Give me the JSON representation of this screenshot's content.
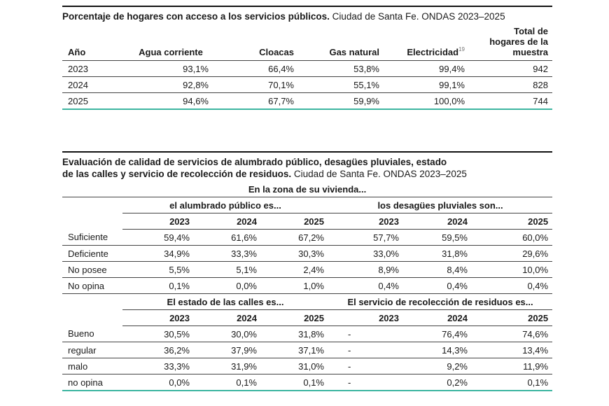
{
  "table1": {
    "title_bold": "Porcentaje de hogares con acceso a los servicios públicos.",
    "title_rest": " Ciudad de Santa Fe. ONDAS 2023–2025",
    "headers": {
      "year": "Año",
      "water": "Agua corriente",
      "sewer": "Cloacas",
      "gas": "Gas natural",
      "electricity": "Electricidad",
      "electricity_note": "19",
      "total_l1": "Total de",
      "total_l2": "hogares de la",
      "total_l3": "muestra"
    },
    "rows": [
      {
        "year": "2023",
        "water": "93,1%",
        "sewer": "66,4%",
        "gas": "53,8%",
        "electricity": "99,4%",
        "total": "942"
      },
      {
        "year": "2024",
        "water": "92,8%",
        "sewer": "70,1%",
        "gas": "55,1%",
        "electricity": "99,1%",
        "total": "828"
      },
      {
        "year": "2025",
        "water": "94,6%",
        "sewer": "67,7%",
        "gas": "59,9%",
        "electricity": "100,0%",
        "total": "744"
      }
    ]
  },
  "table2": {
    "title_line1": "Evaluación de calidad de servicios de alumbrado público, desagües pluviales, estado",
    "title_line2_bold": "de las calles y servicio de recolección de residuos.",
    "title_line2_rest": " Ciudad de Santa Fe. ONDAS 2023–2025",
    "zone_header": "En la zona de su vivienda...",
    "section1": {
      "group_a": "el alumbrado público es...",
      "group_b": "los desagües pluviales son...",
      "years": [
        "2023",
        "2024",
        "2025",
        "2023",
        "2024",
        "2025"
      ],
      "rows": [
        {
          "label": "Suficiente",
          "values": [
            "59,4%",
            "61,6%",
            "67,2%",
            "57,7%",
            "59,5%",
            "60,0%"
          ]
        },
        {
          "label": "Deficiente",
          "values": [
            "34,9%",
            "33,3%",
            "30,3%",
            "33,0%",
            "31,8%",
            "29,6%"
          ]
        },
        {
          "label": "No posee",
          "values": [
            "5,5%",
            "5,1%",
            "2,4%",
            "8,9%",
            "8,4%",
            "10,0%"
          ]
        },
        {
          "label": "No opina",
          "values": [
            "0,1%",
            "0,0%",
            "1,0%",
            "0,4%",
            "0,4%",
            "0,4%"
          ]
        }
      ]
    },
    "section2": {
      "group_a": "El estado de las calles es...",
      "group_b": "El servicio de recolección de residuos es...",
      "years": [
        "2023",
        "2024",
        "2025",
        "2023",
        "2024",
        "2025"
      ],
      "rows": [
        {
          "label": "Bueno",
          "values": [
            "30,5%",
            "30,0%",
            "31,8%",
            "-",
            "76,4%",
            "74,6%"
          ]
        },
        {
          "label": "regular",
          "values": [
            "36,2%",
            "37,9%",
            "37,1%",
            "-",
            "14,3%",
            "13,4%"
          ]
        },
        {
          "label": "malo",
          "values": [
            "33,3%",
            "31,9%",
            "31,0%",
            "-",
            "9,2%",
            "11,9%"
          ]
        },
        {
          "label": "no opina",
          "values": [
            "0,0%",
            "0,1%",
            "0,1%",
            "-",
            "0,2%",
            "0,1%"
          ]
        }
      ]
    }
  }
}
